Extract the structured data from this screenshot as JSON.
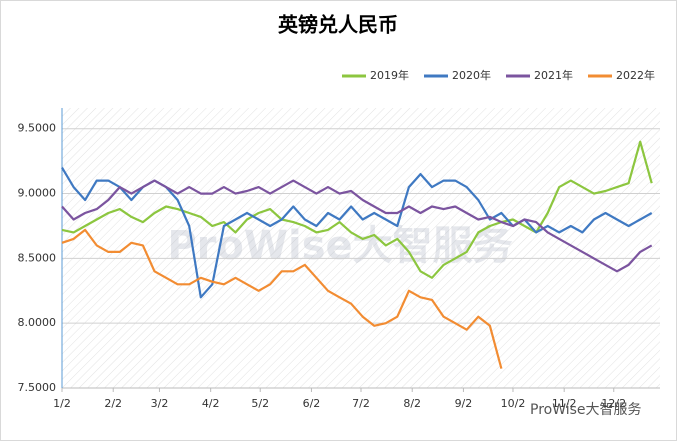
{
  "chart_data": {
    "type": "line",
    "title": "英镑兑人民币",
    "watermark": "ProWise大智服务",
    "x": [
      2,
      9,
      16,
      23,
      30,
      37,
      44,
      51,
      58,
      65,
      72,
      79,
      86,
      93,
      100,
      107,
      114,
      121,
      128,
      135,
      142,
      149,
      156,
      163,
      170,
      177,
      184,
      191,
      198,
      205,
      212,
      219,
      226,
      233,
      240,
      247,
      254,
      261,
      268,
      275,
      282,
      289,
      296,
      303,
      310,
      317,
      324,
      331,
      338,
      345,
      352,
      359
    ],
    "xlim": [
      2,
      364
    ],
    "xticks": [
      {
        "value": 2,
        "label": "1/2"
      },
      {
        "value": 33,
        "label": "2/2"
      },
      {
        "value": 61,
        "label": "3/2"
      },
      {
        "value": 92,
        "label": "4/2"
      },
      {
        "value": 122,
        "label": "5/2"
      },
      {
        "value": 153,
        "label": "6/2"
      },
      {
        "value": 183,
        "label": "7/2"
      },
      {
        "value": 214,
        "label": "8/2"
      },
      {
        "value": 245,
        "label": "9/2"
      },
      {
        "value": 275,
        "label": "10/2"
      },
      {
        "value": 306,
        "label": "11/2"
      },
      {
        "value": 336,
        "label": "12/2"
      }
    ],
    "ylim": [
      7.5,
      9.66
    ],
    "yticks": [
      {
        "value": 7.5,
        "label": "7.5000"
      },
      {
        "value": 8,
        "label": "8.0000"
      },
      {
        "value": 8.5,
        "label": "8.5000"
      },
      {
        "value": 9,
        "label": "9.0000"
      },
      {
        "value": 9.5,
        "label": "9.5000"
      }
    ],
    "grid": true,
    "legend": "top-right",
    "series": [
      {
        "name": "2019年",
        "color": "#8cc63f",
        "values": [
          8.72,
          8.7,
          8.75,
          8.8,
          8.85,
          8.88,
          8.82,
          8.78,
          8.85,
          8.9,
          8.88,
          8.85,
          8.82,
          8.75,
          8.78,
          8.7,
          8.8,
          8.85,
          8.88,
          8.8,
          8.78,
          8.75,
          8.7,
          8.72,
          8.78,
          8.7,
          8.65,
          8.68,
          8.6,
          8.65,
          8.55,
          8.4,
          8.35,
          8.45,
          8.5,
          8.55,
          8.7,
          8.75,
          8.78,
          8.8,
          8.75,
          8.7,
          8.85,
          9.05,
          9.1,
          9.05,
          9.0,
          9.02,
          9.05,
          9.08,
          9.4,
          9.08
        ]
      },
      {
        "name": "2020年",
        "color": "#3f79c2",
        "values": [
          9.2,
          9.05,
          8.95,
          9.1,
          9.1,
          9.05,
          8.95,
          9.05,
          9.1,
          9.05,
          8.95,
          8.75,
          8.2,
          8.3,
          8.75,
          8.8,
          8.85,
          8.8,
          8.75,
          8.8,
          8.9,
          8.8,
          8.75,
          8.85,
          8.8,
          8.9,
          8.8,
          8.85,
          8.8,
          8.75,
          9.05,
          9.15,
          9.05,
          9.1,
          9.1,
          9.05,
          8.95,
          8.8,
          8.85,
          8.75,
          8.8,
          8.7,
          8.75,
          8.7,
          8.75,
          8.7,
          8.8,
          8.85,
          8.8,
          8.75,
          8.8,
          8.85
        ]
      },
      {
        "name": "2021年",
        "color": "#7b549f",
        "values": [
          8.9,
          8.8,
          8.85,
          8.88,
          8.95,
          9.05,
          9.0,
          9.05,
          9.1,
          9.05,
          9.0,
          9.05,
          9.0,
          9.0,
          9.05,
          9.0,
          9.02,
          9.05,
          9.0,
          9.05,
          9.1,
          9.05,
          9.0,
          9.05,
          9.0,
          9.02,
          8.95,
          8.9,
          8.85,
          8.85,
          8.9,
          8.85,
          8.9,
          8.88,
          8.9,
          8.85,
          8.8,
          8.82,
          8.78,
          8.75,
          8.8,
          8.78,
          8.7,
          8.65,
          8.6,
          8.55,
          8.5,
          8.45,
          8.4,
          8.45,
          8.55,
          8.6
        ]
      },
      {
        "name": "2022年",
        "color": "#f28c32",
        "values": [
          8.62,
          8.65,
          8.72,
          8.6,
          8.55,
          8.55,
          8.62,
          8.6,
          8.4,
          8.35,
          8.3,
          8.3,
          8.35,
          8.32,
          8.3,
          8.35,
          8.3,
          8.25,
          8.3,
          8.4,
          8.4,
          8.45,
          8.35,
          8.25,
          8.2,
          8.15,
          8.05,
          7.98,
          8.0,
          8.05,
          8.25,
          8.2,
          8.18,
          8.05,
          8.0,
          7.95,
          8.05,
          7.98,
          7.65,
          null,
          null,
          null,
          null,
          null,
          null,
          null,
          null,
          null,
          null,
          null,
          null,
          null
        ]
      }
    ]
  }
}
